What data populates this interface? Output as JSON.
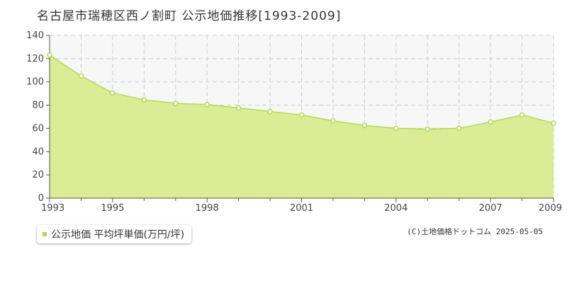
{
  "title": "名古屋市瑞穂区西ノ割町 公示地価推移[1993-2009]",
  "legend_label": "公示地価 平均坪単価(万円/坪)",
  "copyright": "(C)土地価格ドットコム 2025-05-05",
  "colors": {
    "fill": "#d9eb8f",
    "line": "#b6d94c",
    "grid": "#cccccc",
    "plot_bg": "#f7f7f7",
    "axis": "#555555"
  },
  "chart_data": {
    "type": "area",
    "x": [
      1993,
      1994,
      1995,
      1996,
      1997,
      1998,
      1999,
      2000,
      2001,
      2002,
      2003,
      2004,
      2005,
      2006,
      2007,
      2008,
      2009
    ],
    "series": [
      {
        "name": "公示地価 平均坪単価(万円/坪)",
        "values": [
          123,
          105,
          90.5,
          84.5,
          81.5,
          80.5,
          77.5,
          74.5,
          71.5,
          66.5,
          62.5,
          60,
          59.3,
          60,
          65.5,
          71.5,
          64.5
        ]
      }
    ],
    "x_ticks": [
      1993,
      1995,
      1998,
      2001,
      2004,
      2007,
      2009
    ],
    "y_ticks": [
      0,
      20,
      40,
      60,
      80,
      100,
      120,
      140
    ],
    "xlim": [
      1993,
      2009
    ],
    "ylim": [
      0,
      140
    ],
    "grid": true,
    "legend_position": "bottom-left"
  }
}
